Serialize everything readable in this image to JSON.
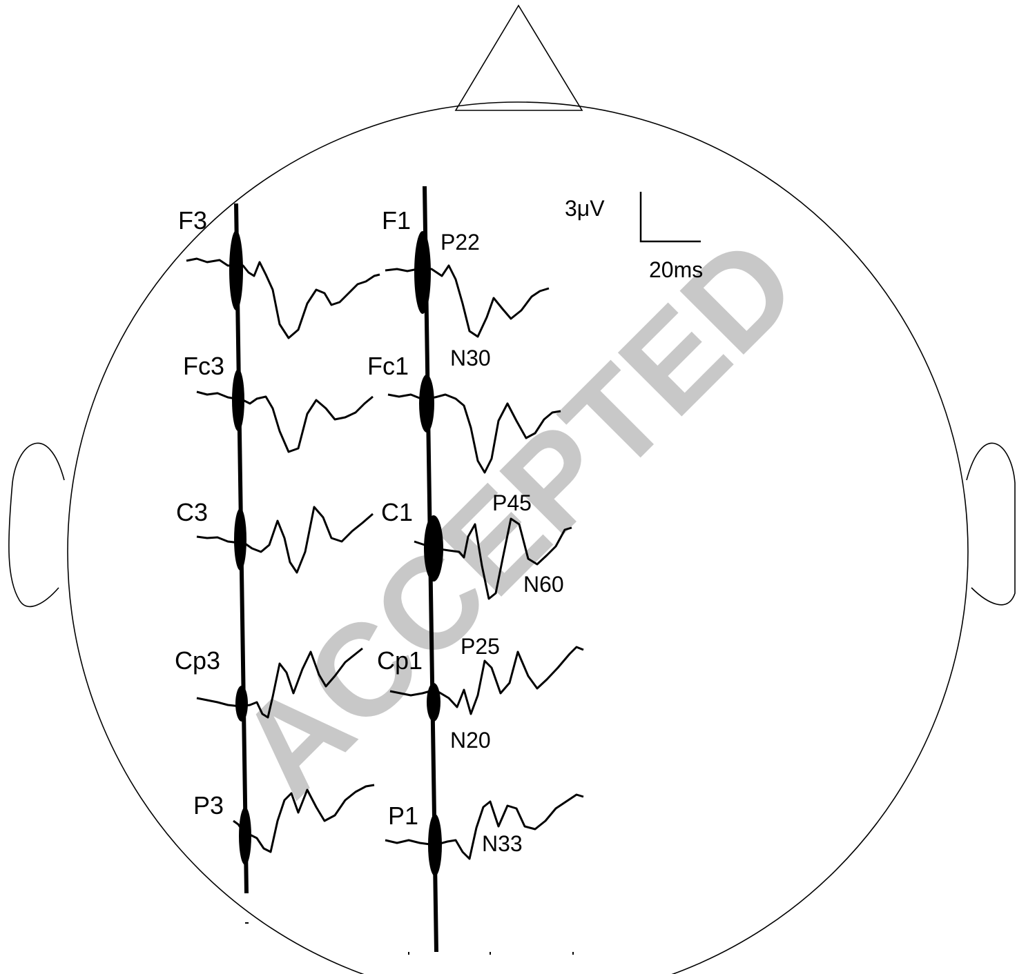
{
  "watermark": "ACCEPTED",
  "scale_bar": {
    "amplitude": "3μV",
    "time": "20ms"
  },
  "electrodes": {
    "F3": "F3",
    "Fc3": "Fc3",
    "C3": "C3",
    "Cp3": "Cp3",
    "P3": "P3",
    "F1": "F1",
    "Fc1": "Fc1",
    "C1": "C1",
    "Cp1": "Cp1",
    "P1": "P1"
  },
  "peaks": {
    "P22": "P22",
    "N30": "N30",
    "P45": "P45",
    "N60": "N60",
    "P25": "P25",
    "N20": "N20",
    "N33": "N33"
  },
  "colors": {
    "line": "#000000",
    "watermark": "#c8c8c8",
    "background": "#ffffff"
  }
}
